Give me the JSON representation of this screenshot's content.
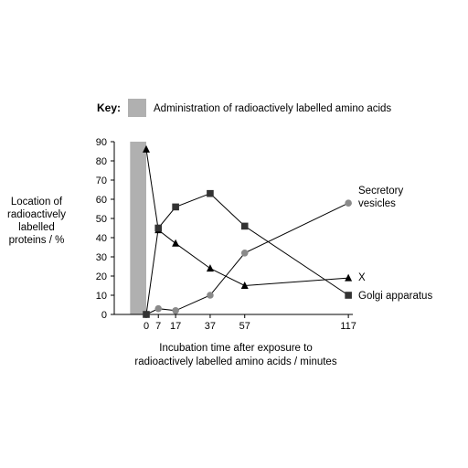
{
  "chart_data": {
    "type": "line",
    "key": {
      "title": "Key:",
      "label": "Administration of radioactively labelled amino acids",
      "color": "#b0b0b0",
      "shaded_x_range": [
        -3,
        0
      ]
    },
    "ylabel_lines": [
      "Location of",
      "radioactively",
      "labelled",
      "proteins / %"
    ],
    "xlabel_lines": [
      "Incubation time after exposure to",
      "radioactively labelled amino acids / minutes"
    ],
    "ylim": [
      0,
      90
    ],
    "yticks": [
      "0",
      "10",
      "20",
      "30",
      "40",
      "50",
      "60",
      "70",
      "80",
      "90"
    ],
    "xticks": [
      {
        "value": 0,
        "label": "0"
      },
      {
        "value": 7,
        "label": "7"
      },
      {
        "value": 17,
        "label": "17"
      },
      {
        "value": 37,
        "label": "37"
      },
      {
        "value": 57,
        "label": "57"
      },
      {
        "value": 117,
        "label": "117"
      }
    ],
    "grid": false,
    "series": [
      {
        "name_lines": [
          "Secretory",
          "vesicles"
        ],
        "marker": "circle",
        "color": "#8a8a8a",
        "points": [
          [
            0,
            0
          ],
          [
            7,
            3
          ],
          [
            17,
            2
          ],
          [
            37,
            10
          ],
          [
            57,
            32
          ],
          [
            117,
            58
          ]
        ]
      },
      {
        "name_lines": [
          "X"
        ],
        "marker": "triangle",
        "color": "#000000",
        "points": [
          [
            0,
            86
          ],
          [
            7,
            44
          ],
          [
            17,
            37
          ],
          [
            37,
            24
          ],
          [
            57,
            15
          ],
          [
            117,
            19
          ]
        ]
      },
      {
        "name_lines": [
          "Golgi apparatus"
        ],
        "marker": "square",
        "color": "#333333",
        "points": [
          [
            0,
            0
          ],
          [
            7,
            45
          ],
          [
            17,
            56
          ],
          [
            37,
            63
          ],
          [
            57,
            46
          ],
          [
            117,
            10
          ]
        ]
      }
    ]
  }
}
